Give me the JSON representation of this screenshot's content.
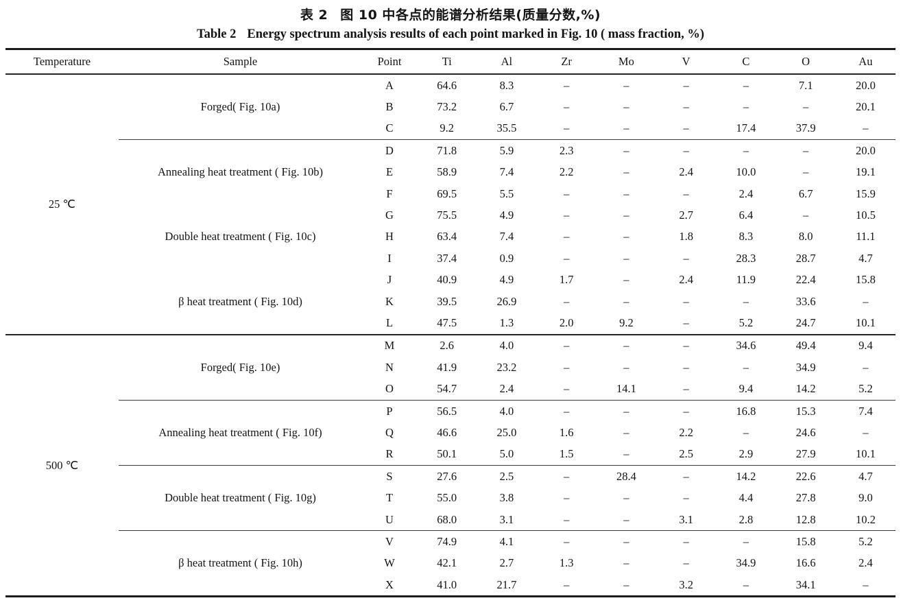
{
  "titles": {
    "cn_label": "表 2",
    "cn_text": "图 10 中各点的能谱分析结果(质量分数,%)",
    "en_label": "Table 2",
    "en_text": "Energy spectrum analysis results of each point marked in Fig. 10 ( mass fraction, %)"
  },
  "table": {
    "headers": [
      "Temperature",
      "Sample",
      "Point",
      "Ti",
      "Al",
      "Zr",
      "Mo",
      "V",
      "C",
      "O",
      "Au"
    ],
    "missing_symbol": "–",
    "groups": [
      {
        "temperature": "25 ℃",
        "samples": [
          {
            "name": "Forged( Fig. 10a)",
            "divider": false,
            "rows": [
              {
                "point": "A",
                "values": [
                  "64.6",
                  "8.3",
                  "–",
                  "–",
                  "–",
                  "–",
                  "7.1",
                  "20.0"
                ]
              },
              {
                "point": "B",
                "values": [
                  "73.2",
                  "6.7",
                  "–",
                  "–",
                  "–",
                  "–",
                  "–",
                  "20.1"
                ]
              },
              {
                "point": "C",
                "values": [
                  "9.2",
                  "35.5",
                  "–",
                  "–",
                  "–",
                  "17.4",
                  "37.9",
                  "–"
                ]
              }
            ]
          },
          {
            "name": "Annealing heat treatment ( Fig. 10b)",
            "divider": true,
            "rows": [
              {
                "point": "D",
                "values": [
                  "71.8",
                  "5.9",
                  "2.3",
                  "–",
                  "–",
                  "–",
                  "–",
                  "20.0"
                ]
              },
              {
                "point": "E",
                "values": [
                  "58.9",
                  "7.4",
                  "2.2",
                  "–",
                  "2.4",
                  "10.0",
                  "–",
                  "19.1"
                ]
              },
              {
                "point": "F",
                "values": [
                  "69.5",
                  "5.5",
                  "–",
                  "–",
                  "–",
                  "2.4",
                  "6.7",
                  "15.9"
                ]
              }
            ]
          },
          {
            "name": "Double heat treatment ( Fig. 10c)",
            "divider": false,
            "rows": [
              {
                "point": "G",
                "values": [
                  "75.5",
                  "4.9",
                  "–",
                  "–",
                  "2.7",
                  "6.4",
                  "–",
                  "10.5"
                ]
              },
              {
                "point": "H",
                "values": [
                  "63.4",
                  "7.4",
                  "–",
                  "–",
                  "1.8",
                  "8.3",
                  "8.0",
                  "11.1"
                ]
              },
              {
                "point": "I",
                "values": [
                  "37.4",
                  "0.9",
                  "–",
                  "–",
                  "–",
                  "28.3",
                  "28.7",
                  "4.7"
                ]
              }
            ]
          },
          {
            "name": "β heat treatment ( Fig. 10d)",
            "divider": false,
            "rows": [
              {
                "point": "J",
                "values": [
                  "40.9",
                  "4.9",
                  "1.7",
                  "–",
                  "2.4",
                  "11.9",
                  "22.4",
                  "15.8"
                ]
              },
              {
                "point": "K",
                "values": [
                  "39.5",
                  "26.9",
                  "–",
                  "–",
                  "–",
                  "–",
                  "33.6",
                  "–"
                ]
              },
              {
                "point": "L",
                "values": [
                  "47.5",
                  "1.3",
                  "2.0",
                  "9.2",
                  "–",
                  "5.2",
                  "24.7",
                  "10.1"
                ]
              }
            ]
          }
        ]
      },
      {
        "temperature": "500 ℃",
        "samples": [
          {
            "name": "Forged( Fig. 10e)",
            "divider": false,
            "rows": [
              {
                "point": "M",
                "values": [
                  "2.6",
                  "4.0",
                  "–",
                  "–",
                  "–",
                  "34.6",
                  "49.4",
                  "9.4"
                ]
              },
              {
                "point": "N",
                "values": [
                  "41.9",
                  "23.2",
                  "–",
                  "–",
                  "–",
                  "–",
                  "34.9",
                  "–"
                ]
              },
              {
                "point": "O",
                "values": [
                  "54.7",
                  "2.4",
                  "–",
                  "14.1",
                  "–",
                  "9.4",
                  "14.2",
                  "5.2"
                ]
              }
            ]
          },
          {
            "name": "Annealing heat treatment ( Fig. 10f)",
            "divider": true,
            "rows": [
              {
                "point": "P",
                "values": [
                  "56.5",
                  "4.0",
                  "–",
                  "–",
                  "–",
                  "16.8",
                  "15.3",
                  "7.4"
                ]
              },
              {
                "point": "Q",
                "values": [
                  "46.6",
                  "25.0",
                  "1.6",
                  "–",
                  "2.2",
                  "–",
                  "24.6",
                  "–"
                ]
              },
              {
                "point": "R",
                "values": [
                  "50.1",
                  "5.0",
                  "1.5",
                  "–",
                  "2.5",
                  "2.9",
                  "27.9",
                  "10.1"
                ]
              }
            ]
          },
          {
            "name": "Double heat treatment ( Fig. 10g)",
            "divider": true,
            "rows": [
              {
                "point": "S",
                "values": [
                  "27.6",
                  "2.5",
                  "–",
                  "28.4",
                  "–",
                  "14.2",
                  "22.6",
                  "4.7"
                ]
              },
              {
                "point": "T",
                "values": [
                  "55.0",
                  "3.8",
                  "–",
                  "–",
                  "–",
                  "4.4",
                  "27.8",
                  "9.0"
                ]
              },
              {
                "point": "U",
                "values": [
                  "68.0",
                  "3.1",
                  "–",
                  "–",
                  "3.1",
                  "2.8",
                  "12.8",
                  "10.2"
                ]
              }
            ]
          },
          {
            "name": "β heat treatment ( Fig. 10h)",
            "divider": true,
            "rows": [
              {
                "point": "V",
                "values": [
                  "74.9",
                  "4.1",
                  "–",
                  "–",
                  "–",
                  "–",
                  "15.8",
                  "5.2"
                ]
              },
              {
                "point": "W",
                "values": [
                  "42.1",
                  "2.7",
                  "1.3",
                  "–",
                  "–",
                  "34.9",
                  "16.6",
                  "2.4"
                ]
              },
              {
                "point": "X",
                "values": [
                  "41.0",
                  "21.7",
                  "–",
                  "–",
                  "3.2",
                  "–",
                  "34.1",
                  "–"
                ]
              }
            ]
          }
        ]
      }
    ]
  }
}
